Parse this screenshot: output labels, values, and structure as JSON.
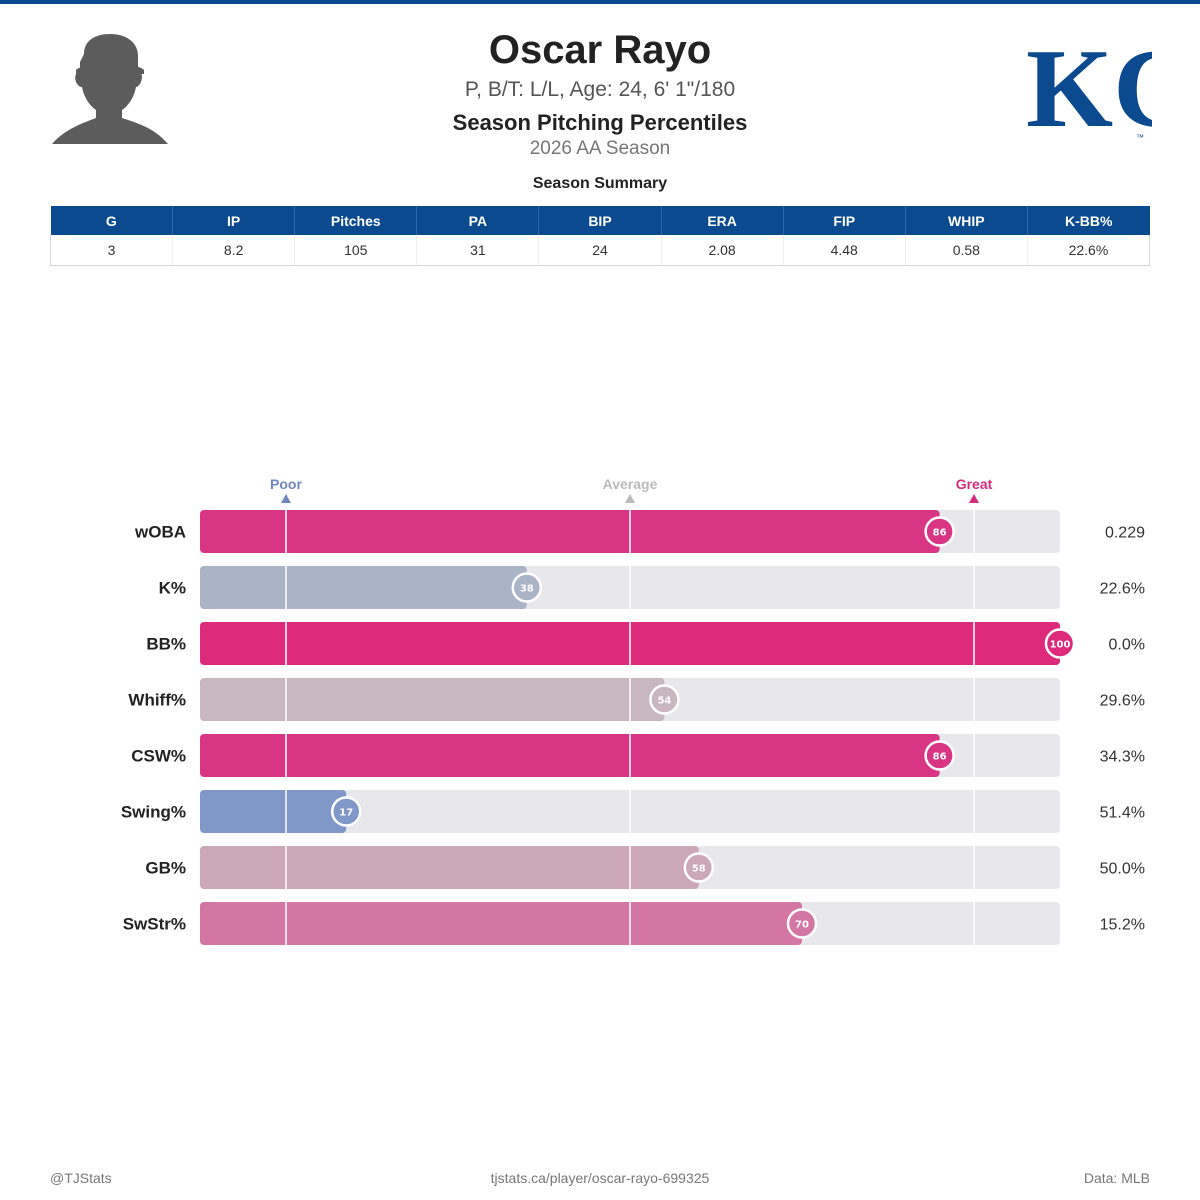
{
  "player": {
    "name": "Oscar Rayo",
    "meta": "P, B/T: L/L, Age: 24, 6' 1\"/180",
    "report_title": "Season Pitching Percentiles",
    "season": "2026 AA Season"
  },
  "logo": {
    "text": "KC",
    "tm": "™",
    "color": "#0b4a8f"
  },
  "summary": {
    "title": "Season Summary",
    "headers": [
      "G",
      "IP",
      "Pitches",
      "PA",
      "BIP",
      "ERA",
      "FIP",
      "WHIP",
      "K-BB%"
    ],
    "values": [
      "3",
      "8.2",
      "105",
      "31",
      "24",
      "2.08",
      "4.48",
      "0.58",
      "22.6%"
    ],
    "header_color": "#0b4a8f"
  },
  "chart_data": {
    "type": "bar",
    "orientation": "horizontal",
    "xlim": [
      0,
      100
    ],
    "scale_markers": [
      {
        "label": "Poor",
        "value": 10,
        "color": "#6f86bf"
      },
      {
        "label": "Average",
        "value": 50,
        "color": "#bbbbbb"
      },
      {
        "label": "Great",
        "value": 90,
        "color": "#d42c7f"
      }
    ],
    "categories": [
      "wOBA",
      "K%",
      "BB%",
      "Whiff%",
      "CSW%",
      "Swing%",
      "GB%",
      "SwStr%"
    ],
    "percentiles": [
      86,
      38,
      100,
      54,
      86,
      17,
      58,
      70
    ],
    "values": [
      "0.229",
      "22.6%",
      "0.0%",
      "29.6%",
      "34.3%",
      "51.4%",
      "50.0%",
      "15.2%"
    ],
    "bar_colors": [
      "#d93585",
      "#aab4c6",
      "#dd2a7b",
      "#c9b7c0",
      "#d93585",
      "#7f98c8",
      "#cca7b8",
      "#d376a3"
    ],
    "track_color": "#e7e7ec"
  },
  "footer": {
    "left": "@TJStats",
    "center": "tjstats.ca/player/oscar-rayo-699325",
    "right": "Data: MLB"
  }
}
